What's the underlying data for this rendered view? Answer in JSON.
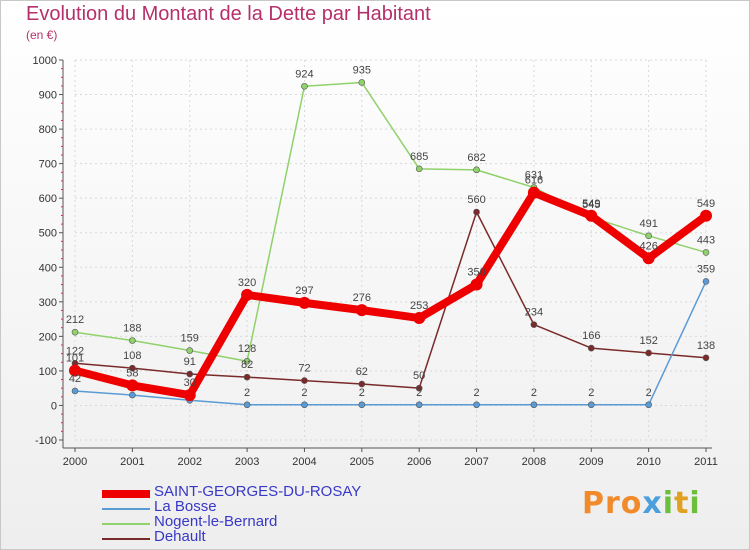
{
  "header": {
    "title": "Evolution du Montant de la Dette par Habitant",
    "unit": "(en €)"
  },
  "colors": {
    "title": "#b5306a",
    "axis": "#555555",
    "legend_text": "#3838c8",
    "tick_marks": "#cc3355"
  },
  "logo": {
    "text": "Proxiti",
    "letter_colors": [
      "#f08a2a",
      "#f08a2a",
      "#f08a2a",
      "#4a9fdc",
      "#6bbf3a",
      "#e0a020",
      "#6bbf3a"
    ]
  },
  "chart_data": {
    "type": "line",
    "x": [
      "2000",
      "2001",
      "2002",
      "2003",
      "2004",
      "2005",
      "2006",
      "2007",
      "2008",
      "2009",
      "2010",
      "2011"
    ],
    "ylim": [
      -100,
      1000
    ],
    "yticks": [
      -100,
      0,
      100,
      200,
      300,
      400,
      500,
      600,
      700,
      800,
      900,
      1000
    ],
    "grid": true,
    "legend_position": "bottom-left",
    "series": [
      {
        "name": "SAINT-GEORGES-DU-ROSAY",
        "color": "#ee0000",
        "width": "thick",
        "values": [
          101,
          58,
          30,
          320,
          297,
          276,
          253,
          350,
          616,
          549,
          426,
          549
        ],
        "labels": [
          "101",
          "58",
          "30",
          "320",
          "297",
          "276",
          "253",
          "350",
          "616",
          "549",
          "426",
          "549"
        ]
      },
      {
        "name": "La Bosse",
        "color": "#5b9bd5",
        "width": "thin",
        "values": [
          42,
          30,
          15,
          2,
          2,
          2,
          2,
          2,
          2,
          2,
          2,
          359
        ],
        "labels": [
          "42",
          "",
          "",
          "2",
          "2",
          "2",
          "2",
          "2",
          "2",
          "2",
          "2",
          "359"
        ]
      },
      {
        "name": "Nogent-le-Bernard",
        "color": "#8fd16a",
        "width": "thin",
        "values": [
          212,
          188,
          159,
          128,
          924,
          935,
          685,
          682,
          631,
          545,
          491,
          443
        ],
        "labels": [
          "212",
          "188",
          "159",
          "128",
          "924",
          "935",
          "685",
          "682",
          "631",
          "545",
          "491",
          "443"
        ]
      },
      {
        "name": "Dehault",
        "color": "#7a2a2a",
        "width": "thin",
        "values": [
          122,
          108,
          91,
          82,
          72,
          62,
          50,
          560,
          234,
          166,
          152,
          138
        ],
        "labels": [
          "122",
          "108",
          "91",
          "82",
          "72",
          "62",
          "50",
          "560",
          "234",
          "166",
          "152",
          "138"
        ]
      }
    ]
  }
}
